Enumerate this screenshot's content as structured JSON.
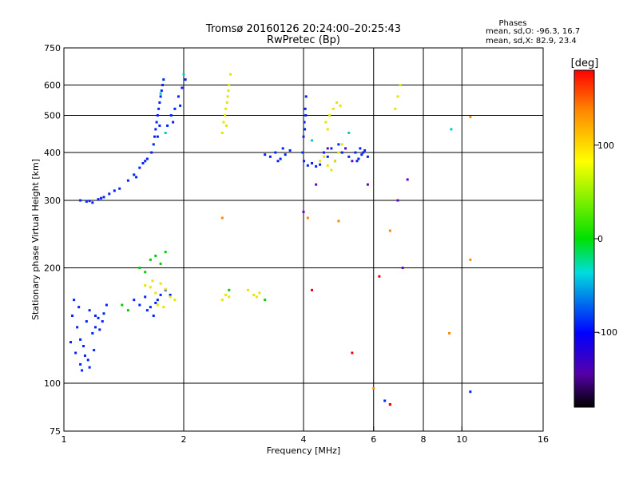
{
  "chart_data": {
    "type": "scatter",
    "title": "Tromsø 20160126 20:24:00–20:25:43",
    "subtitle": "RwPretec (Bp)",
    "stats_title": "Phases",
    "stats_line1": "mean, sd,O: -96.3, 16.7",
    "stats_line2": "mean, sd,X:  82.9, 23.4",
    "xlabel": "Frequency [MHz]",
    "ylabel": "Stationary phase Virtual Height [km]",
    "x_scale": "log",
    "y_scale": "log",
    "xlim": [
      1,
      16
    ],
    "ylim": [
      75,
      750
    ],
    "x_ticks": [
      1,
      2,
      4,
      6,
      8,
      10,
      16
    ],
    "x_tick_labels": [
      "1",
      "2",
      "4",
      "6",
      "8",
      "10",
      "16"
    ],
    "y_ticks": [
      75,
      100,
      200,
      300,
      400,
      500,
      600,
      750
    ],
    "y_tick_labels": [
      "75",
      "100",
      "200",
      "300",
      "400",
      "500",
      "600",
      "750"
    ],
    "grid": true,
    "grid_x": [
      2,
      4,
      6,
      8,
      10
    ],
    "grid_y": [
      100,
      200,
      300,
      400,
      500,
      600
    ],
    "colorbar": {
      "label": "[deg]",
      "range": [
        -180,
        180
      ],
      "ticks": [
        100,
        0,
        -100
      ],
      "tick_labels": [
        "100",
        "0",
        "-100"
      ],
      "colormap": "rainbow: black(-180) → purple → blue → cyan → green(0) → yellow → orange → red(180)"
    },
    "series": [
      {
        "values": [
          [
            1.05,
            150
          ],
          [
            1.08,
            140
          ],
          [
            1.1,
            130
          ],
          [
            1.12,
            125
          ],
          [
            1.14,
            145
          ],
          [
            1.16,
            155
          ],
          [
            1.18,
            135
          ],
          [
            1.2,
            150
          ],
          [
            1.07,
            120
          ],
          [
            1.1,
            112
          ],
          [
            1.13,
            118
          ],
          [
            1.16,
            110
          ],
          [
            1.2,
            140
          ],
          [
            1.22,
            148
          ],
          [
            1.25,
            145
          ],
          [
            1.28,
            160
          ],
          [
            1.06,
            165
          ],
          [
            1.09,
            158
          ],
          [
            1.15,
            115
          ],
          [
            1.04,
            128
          ],
          [
            1.11,
            108
          ],
          [
            1.19,
            122
          ],
          [
            1.23,
            138
          ],
          [
            1.26,
            152
          ],
          [
            1.1,
            300
          ],
          [
            1.14,
            298
          ],
          [
            1.18,
            296
          ],
          [
            1.22,
            302
          ],
          [
            1.26,
            306
          ],
          [
            1.3,
            312
          ],
          [
            1.34,
            318
          ],
          [
            1.38,
            322
          ],
          [
            1.16,
            299
          ],
          [
            1.24,
            304
          ],
          [
            1.45,
            338
          ],
          [
            1.5,
            350
          ],
          [
            1.55,
            365
          ],
          [
            1.58,
            375
          ],
          [
            1.62,
            385
          ],
          [
            1.66,
            400
          ],
          [
            1.52,
            345
          ],
          [
            1.6,
            380
          ],
          [
            1.68,
            420
          ],
          [
            1.7,
            460
          ],
          [
            1.72,
            500
          ],
          [
            1.74,
            540
          ],
          [
            1.76,
            580
          ],
          [
            1.78,
            620
          ],
          [
            1.71,
            480
          ],
          [
            1.73,
            520
          ],
          [
            1.75,
            560
          ],
          [
            1.77,
            600
          ],
          [
            1.69,
            440
          ],
          [
            1.72,
            440
          ],
          [
            1.74,
            470
          ],
          [
            1.82,
            470
          ],
          [
            1.86,
            500
          ],
          [
            1.9,
            520
          ],
          [
            1.94,
            560
          ],
          [
            1.98,
            590
          ],
          [
            2.02,
            620
          ],
          [
            1.88,
            480
          ],
          [
            1.96,
            530
          ],
          [
            1.5,
            165
          ],
          [
            1.55,
            160
          ],
          [
            1.6,
            168
          ],
          [
            1.65,
            158
          ],
          [
            1.7,
            162
          ],
          [
            1.75,
            170
          ],
          [
            1.62,
            155
          ],
          [
            1.68,
            150
          ],
          [
            1.72,
            165
          ],
          [
            1.8,
            175
          ],
          [
            1.85,
            170
          ],
          [
            3.2,
            395
          ],
          [
            3.3,
            390
          ],
          [
            3.4,
            400
          ],
          [
            3.5,
            385
          ],
          [
            3.6,
            395
          ],
          [
            3.7,
            405
          ],
          [
            3.45,
            380
          ],
          [
            3.55,
            410
          ],
          [
            3.98,
            400
          ],
          [
            4.0,
            440
          ],
          [
            4.02,
            480
          ],
          [
            4.04,
            520
          ],
          [
            4.06,
            560
          ],
          [
            4.01,
            380
          ],
          [
            4.03,
            460
          ],
          [
            4.05,
            500
          ],
          [
            4.5,
            400
          ],
          [
            4.6,
            390
          ],
          [
            4.7,
            410
          ],
          [
            4.8,
            380
          ],
          [
            4.9,
            420
          ],
          [
            5.0,
            400
          ],
          [
            5.2,
            390
          ],
          [
            5.4,
            400
          ],
          [
            5.5,
            385
          ],
          [
            5.6,
            395
          ],
          [
            5.7,
            405
          ],
          [
            5.8,
            390
          ],
          [
            5.45,
            380
          ],
          [
            5.55,
            410
          ],
          [
            5.65,
            400
          ],
          [
            4.1,
            370
          ],
          [
            4.2,
            375
          ],
          [
            4.3,
            368
          ],
          [
            4.4,
            372
          ],
          [
            6.4,
            90
          ],
          [
            6.6,
            88
          ],
          [
            10.5,
            95
          ]
        ],
        "color": "#0022ff"
      },
      {
        "values": [
          [
            1.6,
            180
          ],
          [
            1.65,
            178
          ],
          [
            1.7,
            172
          ],
          [
            1.75,
            182
          ],
          [
            1.8,
            176
          ],
          [
            1.85,
            168
          ],
          [
            1.9,
            165
          ],
          [
            1.67,
            185
          ],
          [
            1.72,
            160
          ],
          [
            1.78,
            158
          ],
          [
            2.5,
            450
          ],
          [
            2.52,
            480
          ],
          [
            2.55,
            520
          ],
          [
            2.58,
            560
          ],
          [
            2.6,
            600
          ],
          [
            2.62,
            640
          ],
          [
            2.54,
            500
          ],
          [
            2.57,
            540
          ],
          [
            2.56,
            470
          ],
          [
            2.59,
            580
          ],
          [
            2.5,
            165
          ],
          [
            2.55,
            170
          ],
          [
            2.6,
            168
          ],
          [
            3.0,
            170
          ],
          [
            3.05,
            168
          ],
          [
            3.1,
            172
          ],
          [
            2.9,
            175
          ],
          [
            4.4,
            380
          ],
          [
            4.5,
            390
          ],
          [
            4.6,
            370
          ],
          [
            4.7,
            360
          ],
          [
            4.8,
            380
          ],
          [
            4.9,
            400
          ],
          [
            5.0,
            420
          ],
          [
            4.55,
            480
          ],
          [
            4.65,
            500
          ],
          [
            4.75,
            520
          ],
          [
            4.85,
            540
          ],
          [
            4.95,
            530
          ],
          [
            4.6,
            460
          ],
          [
            6.8,
            520
          ],
          [
            6.9,
            560
          ],
          [
            7.0,
            600
          ]
        ],
        "color": "#e6e600"
      },
      {
        "values": [
          [
            1.65,
            210
          ],
          [
            1.7,
            215
          ],
          [
            1.75,
            205
          ],
          [
            1.8,
            220
          ],
          [
            1.55,
            200
          ],
          [
            1.6,
            195
          ],
          [
            1.4,
            160
          ],
          [
            1.45,
            155
          ],
          [
            2.6,
            175
          ],
          [
            3.2,
            165
          ]
        ],
        "color": "#00cc00"
      },
      {
        "values": [
          [
            1.75,
            570
          ],
          [
            2.0,
            640
          ],
          [
            4.2,
            430
          ],
          [
            5.2,
            450
          ],
          [
            1.8,
            450
          ],
          [
            9.4,
            460
          ]
        ],
        "color": "#00cccc"
      },
      {
        "values": [
          [
            2.5,
            270
          ],
          [
            4.1,
            270
          ],
          [
            4.9,
            265
          ],
          [
            6.6,
            250
          ],
          [
            10.5,
            495
          ],
          [
            10.5,
            210
          ],
          [
            9.3,
            135
          ],
          [
            6.0,
            97
          ]
        ],
        "color": "#ff8800"
      },
      {
        "values": [
          [
            6.6,
            88
          ],
          [
            6.2,
            190
          ],
          [
            5.3,
            120
          ],
          [
            4.2,
            175
          ]
        ],
        "color": "#ee0000"
      },
      {
        "values": [
          [
            4.0,
            280
          ],
          [
            4.3,
            330
          ],
          [
            4.6,
            410
          ],
          [
            5.1,
            410
          ],
          [
            5.3,
            380
          ],
          [
            6.9,
            300
          ],
          [
            7.1,
            200
          ],
          [
            7.3,
            340
          ],
          [
            5.8,
            330
          ]
        ],
        "color": "#6a00c8"
      }
    ]
  }
}
